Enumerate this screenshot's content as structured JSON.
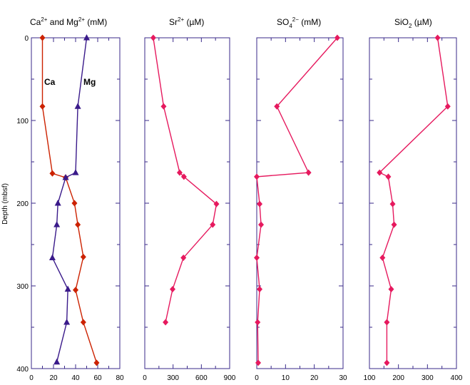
{
  "ylabel": "Depth (mbsf)",
  "y_ticks": [
    "0",
    "100",
    "200",
    "300",
    "400"
  ],
  "colors": {
    "frame": "#3a2a8a",
    "ca": "#cc2200",
    "mg": "#3a1a8a",
    "pink": "#e6195e"
  },
  "chart_data": [
    {
      "type": "line",
      "title_parts": [
        "Ca",
        "2+",
        " and Mg",
        "2+",
        " (mM)"
      ],
      "x_ticks": [
        "0",
        "20",
        "40",
        "60",
        "80"
      ],
      "xlim": [
        0,
        80
      ],
      "ylim": [
        0,
        400
      ],
      "y_reversed": true,
      "annotations": [
        "Ca",
        "Mg"
      ],
      "series": [
        {
          "name": "Ca",
          "marker": "diamond",
          "points": [
            [
              10,
              0
            ],
            [
              10,
              83
            ],
            [
              19,
              164
            ],
            [
              31,
              169
            ],
            [
              39,
              200
            ],
            [
              42,
              226
            ],
            [
              47,
              265
            ],
            [
              40,
              305
            ],
            [
              47,
              344
            ],
            [
              59,
              393
            ]
          ]
        },
        {
          "name": "Mg",
          "marker": "triangle",
          "points": [
            [
              50,
              0
            ],
            [
              42,
              83
            ],
            [
              40,
              163
            ],
            [
              31,
              169
            ],
            [
              24,
              200
            ],
            [
              23,
              226
            ],
            [
              19,
              266
            ],
            [
              33,
              304
            ],
            [
              32,
              344
            ],
            [
              23,
              392
            ]
          ]
        }
      ]
    },
    {
      "type": "line",
      "title_parts": [
        "Sr",
        "2+",
        " (µM)"
      ],
      "x_ticks": [
        "0",
        "300",
        "600",
        "900"
      ],
      "xlim": [
        0,
        900
      ],
      "ylim": [
        0,
        400
      ],
      "y_reversed": true,
      "series": [
        {
          "marker": "diamond",
          "points": [
            [
              90,
              0
            ],
            [
              200,
              83
            ],
            [
              370,
              163
            ],
            [
              415,
              168
            ],
            [
              760,
              201
            ],
            [
              720,
              226
            ],
            [
              410,
              266
            ],
            [
              295,
              304
            ],
            [
              220,
              344
            ]
          ]
        }
      ]
    },
    {
      "type": "line",
      "title_parts": [
        "SO",
        "4",
        "2−",
        " (mM)"
      ],
      "x_ticks": [
        "0",
        "10",
        "20",
        "30"
      ],
      "xlim": [
        0,
        30
      ],
      "ylim": [
        0,
        400
      ],
      "y_reversed": true,
      "series": [
        {
          "marker": "diamond",
          "points": [
            [
              28,
              0
            ],
            [
              7,
              83
            ],
            [
              18,
              163
            ],
            [
              0,
              168
            ],
            [
              1,
              201
            ],
            [
              1.5,
              226
            ],
            [
              0,
              266
            ],
            [
              1,
              304
            ],
            [
              0.3,
              344
            ],
            [
              0.5,
              393
            ]
          ]
        }
      ]
    },
    {
      "type": "line",
      "title_parts": [
        "SiO",
        "2",
        " (µM)"
      ],
      "x_ticks": [
        "100",
        "200",
        "300",
        "400"
      ],
      "xlim": [
        100,
        400
      ],
      "ylim": [
        0,
        400
      ],
      "y_reversed": true,
      "series": [
        {
          "marker": "diamond",
          "points": [
            [
              335,
              0
            ],
            [
              370,
              83
            ],
            [
              135,
              163
            ],
            [
              165,
              168
            ],
            [
              180,
              201
            ],
            [
              185,
              226
            ],
            [
              145,
              266
            ],
            [
              175,
              304
            ],
            [
              160,
              344
            ],
            [
              160,
              393
            ]
          ]
        }
      ]
    }
  ]
}
